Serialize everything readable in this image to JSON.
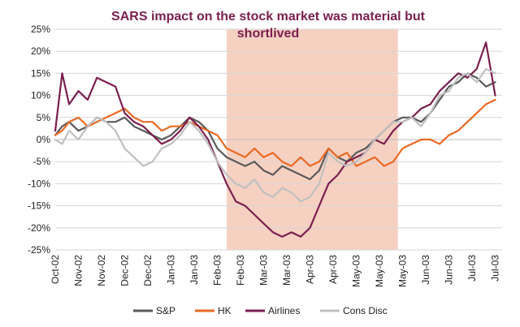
{
  "chart_data": {
    "type": "line",
    "title_lines": [
      "SARS  impact on the stock market was material but",
      "shortlived"
    ],
    "y_ticks": [
      "25%",
      "20%",
      "15%",
      "10%",
      "5%",
      "0%",
      "-5%",
      "-10%",
      "-15%",
      "-20%",
      "-25%"
    ],
    "ylim": [
      -25,
      25
    ],
    "x_tick_labels": [
      "Oct-02",
      "Nov-02",
      "Nov-02",
      "Dec-02",
      "Dec-02",
      "Jan-03",
      "Jan-03",
      "Feb-03",
      "Feb-03",
      "Mar-03",
      "Mar-03",
      "Apr-03",
      "Apr-03",
      "May-03",
      "May-03",
      "May-03",
      "Jun-03",
      "Jun-03",
      "Jul-03",
      "Jul-03"
    ],
    "x_range": [
      0,
      19.3
    ],
    "grid": true,
    "legend_position": "bottom",
    "shaded_period": {
      "from": 7.4,
      "to": 14.8,
      "color": "#f6d1c2"
    },
    "series": [
      {
        "name": "S&P",
        "color": "#5a5a5a",
        "x": [
          0,
          0.3,
          0.6,
          1,
          1.4,
          1.8,
          2.2,
          2.6,
          3,
          3.4,
          3.8,
          4.2,
          4.6,
          5,
          5.4,
          5.8,
          6.2,
          6.6,
          7,
          7.4,
          7.8,
          8.2,
          8.6,
          9,
          9.4,
          9.8,
          10.2,
          10.6,
          11,
          11.4,
          11.8,
          12.2,
          12.6,
          13,
          13.4,
          13.8,
          14.2,
          14.6,
          15,
          15.4,
          15.8,
          16.2,
          16.6,
          17,
          17.4,
          17.8,
          18.2,
          18.6,
          19
        ],
        "y": [
          1,
          3,
          4,
          2,
          3,
          5,
          4,
          4,
          5,
          3,
          2,
          1,
          0,
          1,
          3,
          5,
          4,
          2,
          -2,
          -4,
          -5,
          -6,
          -5,
          -7,
          -8,
          -6,
          -7,
          -8,
          -9,
          -7,
          -2,
          -4,
          -5,
          -3,
          -2,
          0,
          2,
          4,
          5,
          5,
          4,
          6,
          9,
          12,
          13,
          15,
          14,
          12,
          13
        ]
      },
      {
        "name": "HK",
        "color": "#ea6a23",
        "x": [
          0,
          0.3,
          0.6,
          1,
          1.4,
          1.8,
          2.2,
          2.6,
          3,
          3.4,
          3.8,
          4.2,
          4.6,
          5,
          5.4,
          5.8,
          6.2,
          6.6,
          7,
          7.4,
          7.8,
          8.2,
          8.6,
          9,
          9.4,
          9.8,
          10.2,
          10.6,
          11,
          11.4,
          11.8,
          12.2,
          12.6,
          13,
          13.4,
          13.8,
          14.2,
          14.6,
          15,
          15.4,
          15.8,
          16.2,
          16.6,
          17,
          17.4,
          17.8,
          18.2,
          18.6,
          19
        ],
        "y": [
          1,
          2,
          4,
          5,
          3,
          4,
          5,
          6,
          7,
          5,
          4,
          4,
          2,
          3,
          3,
          4,
          3,
          2,
          1,
          -2,
          -3,
          -4,
          -2,
          -4,
          -3,
          -5,
          -6,
          -4,
          -6,
          -5,
          -2,
          -4,
          -3,
          -6,
          -5,
          -4,
          -6,
          -5,
          -2,
          -1,
          0,
          0,
          -1,
          1,
          2,
          4,
          6,
          8,
          9
        ]
      },
      {
        "name": "Airlines",
        "color": "#7b1f4f",
        "x": [
          0,
          0.3,
          0.6,
          1,
          1.4,
          1.8,
          2.2,
          2.6,
          3,
          3.4,
          3.8,
          4.2,
          4.6,
          5,
          5.4,
          5.8,
          6.2,
          6.6,
          7,
          7.4,
          7.8,
          8.2,
          8.6,
          9,
          9.4,
          9.8,
          10.2,
          10.6,
          11,
          11.4,
          11.8,
          12.2,
          12.6,
          13,
          13.4,
          13.8,
          14.2,
          14.6,
          15,
          15.4,
          15.8,
          16.2,
          16.6,
          17,
          17.4,
          17.8,
          18.2,
          18.6,
          19
        ],
        "y": [
          2,
          15,
          8,
          11,
          9,
          14,
          13,
          12,
          6,
          4,
          3,
          1,
          -1,
          0,
          2,
          5,
          3,
          0,
          -5,
          -10,
          -14,
          -15,
          -17,
          -19,
          -21,
          -22,
          -21,
          -22,
          -20,
          -15,
          -10,
          -8,
          -5,
          -4,
          -3,
          0,
          -1,
          2,
          4,
          5,
          7,
          8,
          11,
          13,
          15,
          14,
          16,
          22,
          10
        ]
      },
      {
        "name": "Cons Disc",
        "color": "#c0c0c0",
        "x": [
          0,
          0.3,
          0.6,
          1,
          1.4,
          1.8,
          2.2,
          2.6,
          3,
          3.4,
          3.8,
          4.2,
          4.6,
          5,
          5.4,
          5.8,
          6.2,
          6.6,
          7,
          7.4,
          7.8,
          8.2,
          8.6,
          9,
          9.4,
          9.8,
          10.2,
          10.6,
          11,
          11.4,
          11.8,
          12.2,
          12.6,
          13,
          13.4,
          13.8,
          14.2,
          14.6,
          15,
          15.4,
          15.8,
          16.2,
          16.6,
          17,
          17.4,
          17.8,
          18.2,
          18.6,
          19
        ],
        "y": [
          0,
          -1,
          2,
          0,
          3,
          5,
          4,
          2,
          -2,
          -4,
          -6,
          -5,
          -2,
          -1,
          1,
          4,
          2,
          -1,
          -5,
          -8,
          -10,
          -11,
          -9,
          -12,
          -13,
          -11,
          -12,
          -14,
          -13,
          -10,
          -3,
          -5,
          -6,
          -5,
          -3,
          0,
          2,
          4,
          4,
          5,
          3,
          6,
          10,
          11,
          14,
          15,
          13,
          16,
          15
        ]
      }
    ]
  }
}
